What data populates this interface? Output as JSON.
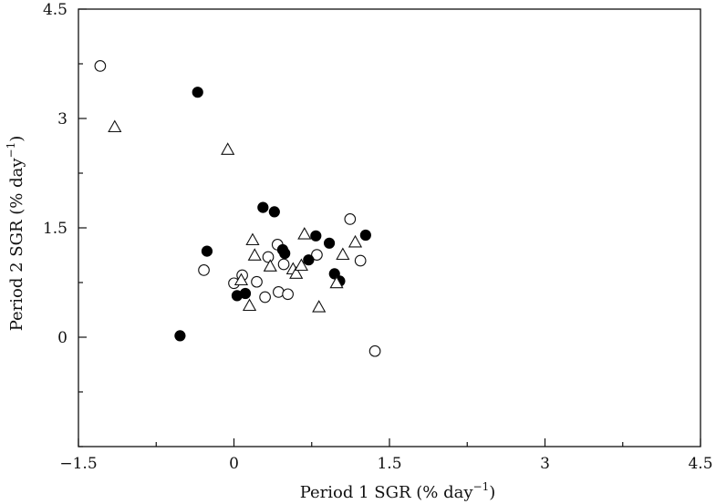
{
  "chart_data": {
    "type": "scatter",
    "title": "",
    "xlabel": "Period 1 SGR (% day",
    "xlabel_sup": "−1",
    "xlabel_end": ")",
    "ylabel": "Period 2 SGR (% day",
    "ylabel_sup": "−1",
    "ylabel_end": ")",
    "xlim": [
      -1.5,
      4.5
    ],
    "ylim": [
      -1.5,
      4.5
    ],
    "x_ticks": [
      {
        "value": -1.5,
        "label": "−1.5"
      },
      {
        "value": 0,
        "label": "0"
      },
      {
        "value": 1.5,
        "label": "1.5"
      },
      {
        "value": 3,
        "label": "3"
      },
      {
        "value": 4.5,
        "label": "4.5"
      }
    ],
    "y_ticks": [
      {
        "value": 0,
        "label": "0"
      },
      {
        "value": 1.5,
        "label": "1.5"
      },
      {
        "value": 3,
        "label": "3"
      },
      {
        "value": 4.5,
        "label": "4.5"
      }
    ],
    "y_minor_ticks": [
      -1.5,
      -0.75,
      0.75,
      2.25,
      3.75
    ],
    "x_minor_ticks": [
      -0.75,
      0.75,
      2.25,
      3.75
    ],
    "grid": false,
    "series": [
      {
        "marker": "open-circle",
        "points": [
          [
            -1.29,
            3.72
          ],
          [
            -0.29,
            0.92
          ],
          [
            0.0,
            0.74
          ],
          [
            0.08,
            0.85
          ],
          [
            0.22,
            0.76
          ],
          [
            0.3,
            0.55
          ],
          [
            0.33,
            1.1
          ],
          [
            0.42,
            1.27
          ],
          [
            0.43,
            0.62
          ],
          [
            0.48,
            1.0
          ],
          [
            0.52,
            0.59
          ],
          [
            0.8,
            1.13
          ],
          [
            1.12,
            1.62
          ],
          [
            1.22,
            1.05
          ],
          [
            1.36,
            -0.19
          ]
        ]
      },
      {
        "marker": "filled-circle",
        "points": [
          [
            -0.35,
            3.36
          ],
          [
            -0.26,
            1.18
          ],
          [
            -0.52,
            0.02
          ],
          [
            0.03,
            0.57
          ],
          [
            0.11,
            0.6
          ],
          [
            0.28,
            1.78
          ],
          [
            0.39,
            1.72
          ],
          [
            0.47,
            1.2
          ],
          [
            0.49,
            1.15
          ],
          [
            0.72,
            1.06
          ],
          [
            0.79,
            1.39
          ],
          [
            0.92,
            1.29
          ],
          [
            0.97,
            0.87
          ],
          [
            1.02,
            0.77
          ],
          [
            1.27,
            1.4
          ]
        ]
      },
      {
        "marker": "open-triangle",
        "points": [
          [
            -1.15,
            2.88
          ],
          [
            -0.06,
            2.57
          ],
          [
            0.07,
            0.78
          ],
          [
            0.15,
            0.43
          ],
          [
            0.18,
            1.33
          ],
          [
            0.2,
            1.12
          ],
          [
            0.35,
            0.97
          ],
          [
            0.57,
            0.93
          ],
          [
            0.6,
            0.87
          ],
          [
            0.65,
            0.98
          ],
          [
            0.68,
            1.41
          ],
          [
            0.82,
            0.41
          ],
          [
            0.99,
            0.74
          ],
          [
            1.05,
            1.13
          ],
          [
            1.17,
            1.3
          ]
        ]
      }
    ]
  }
}
